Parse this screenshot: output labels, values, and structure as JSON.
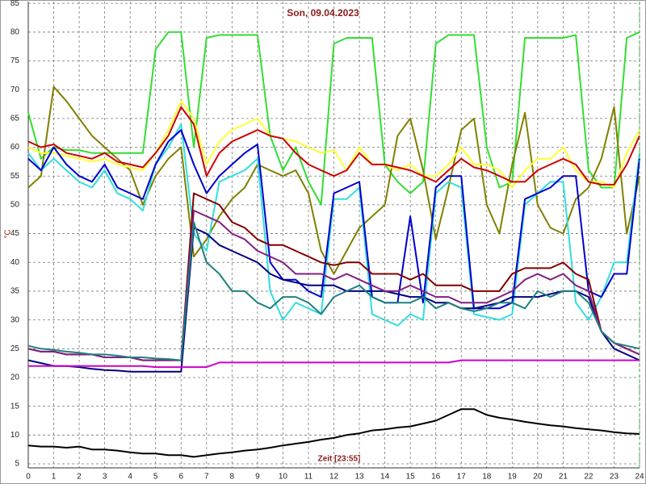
{
  "chart_data": {
    "type": "line",
    "title": "Son, 09.04.2023",
    "x_label": "Zeit [23:55]",
    "y_label": "°C",
    "x": [
      0,
      0.5,
      1,
      1.5,
      2,
      2.5,
      3,
      3.5,
      4,
      4.5,
      5,
      5.5,
      6,
      6.5,
      7,
      7.5,
      8,
      8.5,
      9,
      9.5,
      10,
      10.5,
      11,
      11.5,
      12,
      12.5,
      13,
      13.5,
      14,
      14.5,
      15,
      15.5,
      16,
      16.5,
      17,
      17.5,
      18,
      18.5,
      19,
      19.5,
      20,
      20.5,
      21,
      21.5,
      22,
      22.5,
      23,
      23.5,
      24
    ],
    "xlim": [
      0,
      24
    ],
    "xticks": [
      0,
      1,
      2,
      3,
      4,
      5,
      6,
      7,
      8,
      9,
      10,
      11,
      12,
      13,
      14,
      15,
      16,
      17,
      18,
      19,
      20,
      21,
      22,
      23,
      24
    ],
    "ylim": [
      4.3,
      85.3
    ],
    "yticks": [
      5,
      10,
      15,
      20,
      25,
      30,
      35,
      40,
      45,
      50,
      55,
      60,
      65,
      70,
      75,
      80,
      85
    ],
    "grid": true,
    "series": [
      {
        "color": "#33dd33",
        "values": [
          66,
          58,
          60,
          59.5,
          59.5,
          59,
          59,
          59,
          59,
          59,
          77,
          80,
          80,
          60,
          79,
          79.5,
          79.5,
          79.5,
          79.5,
          62,
          56,
          60,
          54,
          50,
          78,
          79,
          79,
          79,
          57,
          54,
          52,
          54,
          78,
          79.5,
          79.5,
          79.5,
          60,
          53,
          54,
          79,
          79,
          79,
          79,
          79.5,
          56,
          53,
          53,
          79,
          80
        ]
      },
      {
        "color": "#808000",
        "values": [
          53,
          55,
          70.5,
          68,
          65,
          62,
          60,
          58,
          56,
          50,
          55,
          58,
          60,
          41,
          44,
          48,
          51,
          53,
          57,
          56,
          55,
          56,
          52,
          42,
          38,
          42,
          46,
          48,
          50,
          62,
          65,
          56,
          44,
          53,
          63,
          65,
          50,
          45,
          57,
          66,
          50,
          46,
          45,
          51,
          53,
          58,
          67,
          45,
          55
        ]
      },
      {
        "color": "#ffff33",
        "values": [
          60,
          59,
          59,
          58.5,
          58,
          57.5,
          58,
          57,
          56.5,
          56,
          59,
          63,
          68,
          65,
          57,
          61,
          63,
          64,
          65,
          62,
          61.5,
          61,
          60,
          59,
          59.5,
          56,
          60,
          57,
          57,
          56,
          57,
          55,
          55,
          57,
          60,
          57,
          57,
          56,
          53,
          56,
          58,
          58,
          60,
          56,
          54,
          54,
          53,
          59,
          63
        ]
      },
      {
        "color": "#cc0000",
        "values": [
          61,
          60,
          60.5,
          59,
          58.5,
          58,
          59,
          57.5,
          57,
          56.5,
          59,
          62,
          67,
          64,
          55,
          59,
          61,
          62,
          63,
          62,
          61.5,
          59,
          57,
          56,
          55,
          56,
          59,
          57,
          57,
          56.5,
          56,
          55,
          54,
          56,
          58,
          56.5,
          56,
          55,
          54,
          54,
          56,
          57,
          58,
          57,
          54,
          53.5,
          53.5,
          57,
          62
        ]
      },
      {
        "color": "#33dddd",
        "values": [
          59,
          56,
          58,
          56,
          54,
          53,
          56,
          52,
          51,
          49,
          57,
          60,
          64,
          45,
          42,
          54,
          55,
          56,
          58,
          35,
          30,
          33,
          32,
          31,
          51,
          51,
          53,
          31,
          30,
          29,
          31,
          30,
          52,
          54,
          53,
          31,
          30.5,
          30,
          31,
          50,
          52,
          54,
          54,
          33,
          30,
          34,
          40,
          40,
          59
        ]
      },
      {
        "color": "#0000cc",
        "values": [
          58,
          56,
          60,
          57,
          55,
          54,
          57,
          53,
          52,
          51,
          57,
          61,
          63,
          57,
          52,
          55,
          57,
          59,
          60.5,
          40,
          37,
          37,
          35,
          34,
          52,
          53,
          54,
          34,
          33,
          33,
          48,
          33,
          53,
          55,
          55,
          32,
          32,
          32,
          33,
          51,
          52,
          53,
          55,
          55,
          35,
          34,
          38,
          38,
          58
        ]
      },
      {
        "color": "#000080",
        "values": [
          23,
          22.5,
          22,
          22,
          21.8,
          21.5,
          21.3,
          21.2,
          21,
          21,
          21,
          21,
          21,
          46,
          45,
          43,
          42,
          41,
          40,
          38,
          37,
          36.5,
          36,
          36,
          36,
          35,
          35,
          35,
          35,
          34.5,
          34,
          34,
          33,
          33,
          32,
          32,
          32.5,
          33,
          34,
          34,
          34,
          34.5,
          35,
          35,
          34,
          28,
          25,
          24,
          23
        ]
      },
      {
        "color": "#800000",
        "values": [
          25,
          24.5,
          24.5,
          24,
          24,
          24,
          23.5,
          23.5,
          23.5,
          23,
          23,
          23,
          23,
          52,
          51,
          50,
          47,
          46,
          44,
          43,
          43,
          42,
          41,
          40,
          39.5,
          40,
          40,
          38,
          38,
          38,
          37,
          38,
          36,
          36,
          36,
          35,
          35,
          35,
          38,
          39,
          39,
          39,
          40,
          38,
          37,
          28,
          26,
          25,
          24
        ]
      },
      {
        "color": "#802080",
        "values": [
          25,
          24.5,
          24.5,
          24,
          24,
          24,
          23.5,
          23.5,
          23.5,
          23,
          23,
          23,
          23,
          49,
          48,
          47,
          45,
          44,
          42,
          41,
          40,
          38,
          38,
          38,
          37,
          38,
          37,
          36,
          35,
          35,
          36,
          35,
          34,
          34,
          33,
          33,
          33,
          34,
          35,
          37,
          38,
          37,
          38,
          36,
          35,
          28,
          26,
          25,
          24
        ]
      },
      {
        "color": "#208080",
        "values": [
          25.5,
          25,
          24.8,
          24.5,
          24.3,
          24,
          24,
          23.8,
          23.5,
          23.5,
          23.3,
          23.2,
          23,
          47,
          40,
          38,
          35,
          35,
          33,
          32,
          34,
          34,
          33,
          31,
          34,
          35,
          36,
          34,
          33,
          33,
          33,
          34,
          32,
          33,
          32,
          31.5,
          32,
          33,
          33,
          32,
          35,
          34,
          35,
          35,
          33,
          28,
          26,
          25.5,
          25
        ]
      },
      {
        "color": "#cc00cc",
        "values": [
          22,
          22,
          22,
          22,
          22,
          22,
          22,
          22,
          22,
          22,
          21.8,
          21.8,
          21.8,
          21.8,
          21.8,
          22.6,
          22.6,
          22.6,
          22.6,
          22.6,
          22.6,
          22.6,
          22.6,
          22.6,
          22.6,
          22.6,
          22.6,
          22.6,
          22.6,
          22.6,
          22.6,
          22.6,
          22.6,
          22.6,
          23,
          23,
          23,
          23,
          23,
          23,
          23,
          23,
          23,
          23,
          23,
          23,
          23,
          23,
          23
        ]
      },
      {
        "color": "#000000",
        "values": [
          8.2,
          8,
          8,
          7.8,
          8,
          7.5,
          7.5,
          7.3,
          7,
          6.8,
          6.8,
          6.5,
          6.5,
          6.2,
          6.5,
          6.8,
          7,
          7.3,
          7.5,
          7.8,
          8.2,
          8.5,
          8.8,
          9.2,
          9.5,
          10,
          10.3,
          10.8,
          11,
          11.3,
          11.5,
          12,
          12.5,
          13.5,
          14.5,
          14.5,
          13.5,
          13,
          12.7,
          12.3,
          12,
          11.7,
          11.5,
          11.2,
          11,
          10.8,
          10.5,
          10.3,
          10.2
        ]
      }
    ]
  }
}
